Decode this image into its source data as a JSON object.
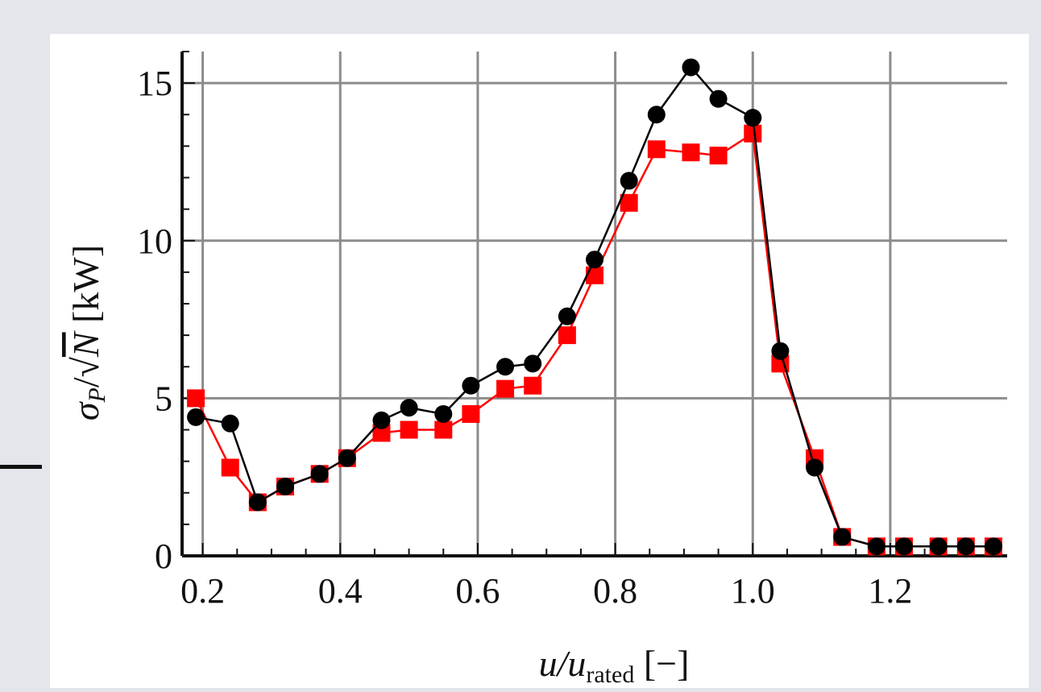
{
  "colors": {
    "background": "#e4e6ec",
    "plot_background": "#ffffff",
    "grid": "#8c8c8c",
    "axis": "#111111",
    "series_black": "#000000",
    "series_red": "#ff0000"
  },
  "chart_data": {
    "type": "line",
    "title": "",
    "xlabel": "u/u_rated [−]",
    "ylabel": "σ_P/√N [kW]",
    "axis_labels": {
      "x_main": "u/u",
      "x_sub": "rated",
      "x_unit": " [−]",
      "y_sigma": "σ",
      "y_sub": "P",
      "y_mid": "/",
      "y_n": "N",
      "y_unit": " [kW]"
    },
    "xlim": [
      0.17,
      1.37
    ],
    "ylim": [
      0,
      16
    ],
    "x_ticks": [
      0.2,
      0.4,
      0.6,
      0.8,
      1.0,
      1.2
    ],
    "x_tick_labels": [
      "0.2",
      "0.4",
      "0.6",
      "0.8",
      "1.0",
      "1.2"
    ],
    "y_ticks": [
      0,
      5,
      10,
      15
    ],
    "y_tick_labels": [
      "0",
      "5",
      "10",
      "15"
    ],
    "grid": true,
    "legend": "none",
    "series": [
      {
        "color": "#000000",
        "marker": "circle",
        "x": [
          0.19,
          0.24,
          0.28,
          0.32,
          0.37,
          0.41,
          0.46,
          0.5,
          0.55,
          0.59,
          0.64,
          0.68,
          0.73,
          0.77,
          0.82,
          0.86,
          0.91,
          0.95,
          1.0,
          1.04,
          1.09,
          1.13,
          1.18,
          1.22,
          1.27,
          1.31,
          1.35
        ],
        "y": [
          4.4,
          4.2,
          1.7,
          2.2,
          2.6,
          3.1,
          4.3,
          4.7,
          4.5,
          5.4,
          6.0,
          6.1,
          7.6,
          9.4,
          11.9,
          14.0,
          15.5,
          14.5,
          13.9,
          6.5,
          2.8,
          0.6,
          0.3,
          0.3,
          0.3,
          0.3,
          0.3
        ]
      },
      {
        "color": "#ff0000",
        "marker": "square",
        "x": [
          0.19,
          0.24,
          0.28,
          0.32,
          0.37,
          0.41,
          0.46,
          0.5,
          0.55,
          0.59,
          0.64,
          0.68,
          0.73,
          0.77,
          0.82,
          0.86,
          0.91,
          0.95,
          1.0,
          1.04,
          1.09,
          1.13,
          1.18,
          1.22,
          1.27,
          1.31,
          1.35
        ],
        "y": [
          5.0,
          2.8,
          1.7,
          2.2,
          2.6,
          3.1,
          3.9,
          4.0,
          4.0,
          4.5,
          5.3,
          5.4,
          7.0,
          8.9,
          11.2,
          12.9,
          12.8,
          12.7,
          13.4,
          6.1,
          3.1,
          0.6,
          0.3,
          0.3,
          0.3,
          0.3,
          0.3
        ]
      }
    ]
  }
}
